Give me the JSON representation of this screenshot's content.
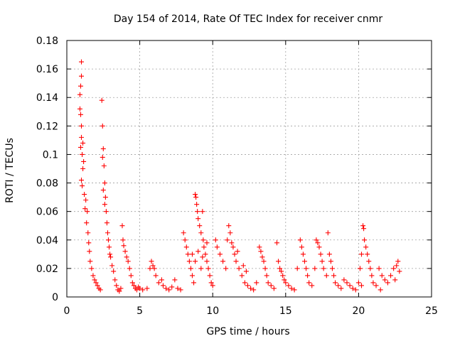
{
  "chart_data": {
    "type": "scatter",
    "title": "Day 154 of 2014, Rate Of TEC Index for receiver cnmr",
    "xlabel": "GPS time / hours",
    "ylabel": "ROTI / TECUs",
    "xlim": [
      0,
      25
    ],
    "ylim": [
      0,
      0.18
    ],
    "x_ticks": [
      0,
      5,
      10,
      15,
      20,
      25
    ],
    "x_tick_labels": [
      "0",
      "5",
      "10",
      "15",
      "20",
      "25"
    ],
    "y_ticks": [
      0,
      0.02,
      0.04,
      0.06,
      0.08,
      0.1,
      0.12,
      0.14,
      0.16,
      0.18
    ],
    "y_tick_labels": [
      "0",
      "0.02",
      "0.04",
      "0.06",
      "0.08",
      "0.1",
      "0.12",
      "0.14",
      "0.16",
      "0.18"
    ],
    "grid": true,
    "marker": "+",
    "color": "#ff0000",
    "series": [
      {
        "name": "ROTI",
        "points": [
          [
            1.0,
            0.165
          ],
          [
            1.0,
            0.155
          ],
          [
            0.95,
            0.148
          ],
          [
            0.9,
            0.142
          ],
          [
            0.9,
            0.132
          ],
          [
            0.95,
            0.128
          ],
          [
            1.0,
            0.12
          ],
          [
            1.0,
            0.112
          ],
          [
            0.95,
            0.105
          ],
          [
            1.1,
            0.108
          ],
          [
            1.05,
            0.1
          ],
          [
            1.15,
            0.095
          ],
          [
            1.1,
            0.09
          ],
          [
            1.0,
            0.082
          ],
          [
            1.05,
            0.078
          ],
          [
            1.2,
            0.072
          ],
          [
            1.3,
            0.068
          ],
          [
            1.25,
            0.062
          ],
          [
            1.4,
            0.06
          ],
          [
            1.35,
            0.052
          ],
          [
            1.45,
            0.045
          ],
          [
            1.5,
            0.038
          ],
          [
            1.55,
            0.032
          ],
          [
            1.6,
            0.025
          ],
          [
            1.7,
            0.02
          ],
          [
            1.8,
            0.015
          ],
          [
            1.9,
            0.012
          ],
          [
            2.0,
            0.01
          ],
          [
            2.1,
            0.008
          ],
          [
            2.2,
            0.006
          ],
          [
            2.3,
            0.005
          ],
          [
            2.4,
            0.138
          ],
          [
            2.45,
            0.12
          ],
          [
            2.5,
            0.104
          ],
          [
            2.45,
            0.098
          ],
          [
            2.55,
            0.092
          ],
          [
            2.6,
            0.08
          ],
          [
            2.5,
            0.075
          ],
          [
            2.65,
            0.07
          ],
          [
            2.6,
            0.065
          ],
          [
            2.7,
            0.06
          ],
          [
            2.75,
            0.052
          ],
          [
            2.8,
            0.045
          ],
          [
            2.85,
            0.04
          ],
          [
            2.9,
            0.035
          ],
          [
            2.95,
            0.03
          ],
          [
            3.0,
            0.028
          ],
          [
            3.1,
            0.022
          ],
          [
            3.2,
            0.018
          ],
          [
            3.3,
            0.012
          ],
          [
            3.4,
            0.008
          ],
          [
            3.5,
            0.005
          ],
          [
            3.6,
            0.004
          ],
          [
            3.7,
            0.006
          ],
          [
            3.8,
            0.05
          ],
          [
            3.85,
            0.04
          ],
          [
            3.9,
            0.036
          ],
          [
            4.0,
            0.032
          ],
          [
            4.1,
            0.028
          ],
          [
            4.2,
            0.025
          ],
          [
            4.3,
            0.02
          ],
          [
            4.4,
            0.015
          ],
          [
            4.5,
            0.01
          ],
          [
            4.6,
            0.008
          ],
          [
            4.7,
            0.006
          ],
          [
            4.8,
            0.005
          ],
          [
            4.9,
            0.007
          ],
          [
            5.0,
            0.006
          ],
          [
            5.2,
            0.005
          ],
          [
            5.5,
            0.006
          ],
          [
            5.7,
            0.02
          ],
          [
            5.8,
            0.025
          ],
          [
            5.9,
            0.022
          ],
          [
            6.0,
            0.02
          ],
          [
            6.1,
            0.015
          ],
          [
            6.3,
            0.01
          ],
          [
            6.5,
            0.012
          ],
          [
            6.6,
            0.008
          ],
          [
            6.8,
            0.006
          ],
          [
            7.0,
            0.005
          ],
          [
            7.2,
            0.007
          ],
          [
            7.4,
            0.012
          ],
          [
            7.6,
            0.006
          ],
          [
            7.8,
            0.005
          ],
          [
            8.0,
            0.045
          ],
          [
            8.1,
            0.04
          ],
          [
            8.2,
            0.035
          ],
          [
            8.3,
            0.03
          ],
          [
            8.4,
            0.025
          ],
          [
            8.5,
            0.02
          ],
          [
            8.6,
            0.015
          ],
          [
            8.7,
            0.01
          ],
          [
            8.8,
            0.072
          ],
          [
            8.85,
            0.07
          ],
          [
            8.9,
            0.065
          ],
          [
            8.95,
            0.06
          ],
          [
            9.0,
            0.055
          ],
          [
            9.1,
            0.05
          ],
          [
            9.2,
            0.045
          ],
          [
            9.3,
            0.06
          ],
          [
            9.35,
            0.04
          ],
          [
            9.4,
            0.035
          ],
          [
            9.5,
            0.03
          ],
          [
            9.6,
            0.025
          ],
          [
            9.7,
            0.02
          ],
          [
            9.8,
            0.015
          ],
          [
            9.9,
            0.01
          ],
          [
            10.0,
            0.008
          ],
          [
            9.3,
            0.028
          ],
          [
            9.2,
            0.02
          ],
          [
            9.0,
            0.032
          ],
          [
            8.8,
            0.025
          ],
          [
            8.6,
            0.03
          ],
          [
            9.6,
            0.038
          ],
          [
            10.2,
            0.04
          ],
          [
            10.3,
            0.035
          ],
          [
            10.5,
            0.03
          ],
          [
            10.7,
            0.025
          ],
          [
            10.9,
            0.02
          ],
          [
            11.0,
            0.04
          ],
          [
            11.1,
            0.05
          ],
          [
            11.2,
            0.045
          ],
          [
            11.3,
            0.038
          ],
          [
            11.4,
            0.035
          ],
          [
            11.5,
            0.03
          ],
          [
            11.6,
            0.025
          ],
          [
            11.8,
            0.02
          ],
          [
            12.0,
            0.015
          ],
          [
            12.2,
            0.01
          ],
          [
            12.4,
            0.008
          ],
          [
            12.6,
            0.006
          ],
          [
            12.8,
            0.005
          ],
          [
            11.7,
            0.032
          ],
          [
            12.1,
            0.022
          ],
          [
            12.3,
            0.018
          ],
          [
            13.0,
            0.01
          ],
          [
            13.2,
            0.035
          ],
          [
            13.3,
            0.032
          ],
          [
            13.4,
            0.028
          ],
          [
            13.5,
            0.025
          ],
          [
            13.6,
            0.02
          ],
          [
            13.7,
            0.015
          ],
          [
            13.8,
            0.01
          ],
          [
            14.0,
            0.008
          ],
          [
            14.2,
            0.006
          ],
          [
            14.4,
            0.038
          ],
          [
            14.5,
            0.025
          ],
          [
            14.6,
            0.02
          ],
          [
            14.7,
            0.018
          ],
          [
            14.8,
            0.015
          ],
          [
            14.9,
            0.012
          ],
          [
            15.0,
            0.01
          ],
          [
            15.2,
            0.008
          ],
          [
            15.4,
            0.006
          ],
          [
            15.6,
            0.005
          ],
          [
            15.8,
            0.02
          ],
          [
            16.0,
            0.04
          ],
          [
            16.1,
            0.035
          ],
          [
            16.2,
            0.03
          ],
          [
            16.3,
            0.025
          ],
          [
            16.4,
            0.02
          ],
          [
            16.5,
            0.015
          ],
          [
            16.6,
            0.01
          ],
          [
            16.8,
            0.008
          ],
          [
            17.0,
            0.02
          ],
          [
            17.1,
            0.04
          ],
          [
            17.2,
            0.038
          ],
          [
            17.3,
            0.035
          ],
          [
            17.4,
            0.03
          ],
          [
            17.5,
            0.025
          ],
          [
            17.6,
            0.02
          ],
          [
            17.8,
            0.015
          ],
          [
            18.0,
            0.03
          ],
          [
            18.1,
            0.025
          ],
          [
            18.2,
            0.02
          ],
          [
            18.3,
            0.015
          ],
          [
            18.4,
            0.01
          ],
          [
            18.6,
            0.008
          ],
          [
            18.8,
            0.006
          ],
          [
            17.9,
            0.045
          ],
          [
            19.0,
            0.012
          ],
          [
            19.2,
            0.01
          ],
          [
            19.4,
            0.008
          ],
          [
            19.6,
            0.006
          ],
          [
            19.8,
            0.005
          ],
          [
            20.0,
            0.01
          ],
          [
            20.1,
            0.02
          ],
          [
            20.2,
            0.03
          ],
          [
            20.3,
            0.05
          ],
          [
            20.35,
            0.048
          ],
          [
            20.4,
            0.04
          ],
          [
            20.5,
            0.035
          ],
          [
            20.6,
            0.03
          ],
          [
            20.7,
            0.025
          ],
          [
            20.8,
            0.02
          ],
          [
            20.9,
            0.015
          ],
          [
            21.0,
            0.01
          ],
          [
            21.2,
            0.008
          ],
          [
            21.4,
            0.02
          ],
          [
            21.6,
            0.015
          ],
          [
            21.8,
            0.012
          ],
          [
            22.0,
            0.01
          ],
          [
            22.2,
            0.015
          ],
          [
            22.4,
            0.02
          ],
          [
            22.6,
            0.022
          ],
          [
            22.7,
            0.025
          ],
          [
            22.8,
            0.018
          ],
          [
            20.2,
            0.008
          ],
          [
            21.5,
            0.005
          ],
          [
            22.5,
            0.012
          ]
        ]
      }
    ]
  }
}
